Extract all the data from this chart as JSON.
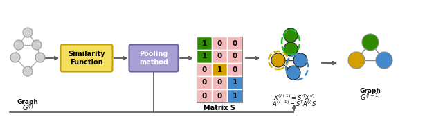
{
  "bg_color": "#ffffff",
  "graph1_label1": "Graph",
  "graph1_label2": "G",
  "similarity_box_color": "#f5df5e",
  "similarity_border_color": "#c8a000",
  "similarity_text": "Similarity\nFunction",
  "pooling_box_color": "#a89fd4",
  "pooling_border_color": "#7060a0",
  "pooling_text": "Pooling\nmethod",
  "matrix_label": "Matrix S",
  "matrix_data": [
    [
      1,
      0,
      0
    ],
    [
      1,
      0,
      0
    ],
    [
      0,
      1,
      0
    ],
    [
      0,
      0,
      1
    ],
    [
      0,
      0,
      1
    ]
  ],
  "matrix_col_colors": [
    "#2e8b00",
    "#d4a000",
    "#4488cc"
  ],
  "matrix_bg": "#f2b8b8",
  "graph2_nodes_colors": [
    "#2e8b00",
    "#2e8b00",
    "#d4a000",
    "#4488cc",
    "#4488cc"
  ],
  "graph3_nodes_colors": [
    "#2e8b00",
    "#d4a000",
    "#4488cc"
  ],
  "arrow_color": "#555555",
  "node_edge_color": "#888888",
  "node_fill_color": "#d0d0d0",
  "green_cluster_color": "#22bb22",
  "yellow_cluster_color": "#ccaa00",
  "blue_cluster_color": "#4488cc"
}
